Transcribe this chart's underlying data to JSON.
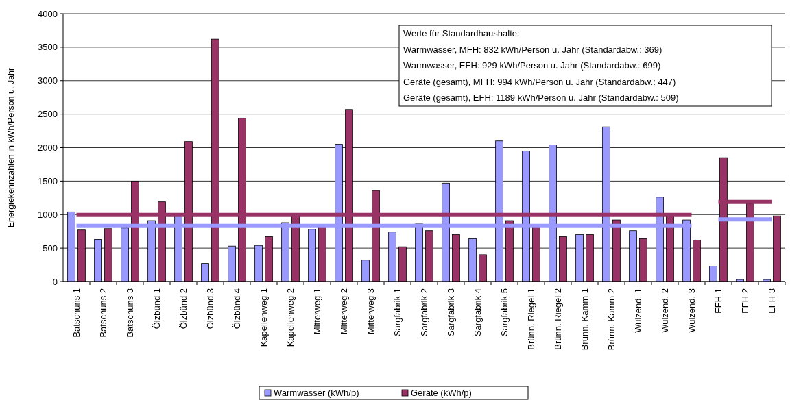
{
  "chart_data": {
    "type": "bar",
    "ylabel": "Energiekennzahlen in kWh/Person u. Jahr",
    "categories": [
      "Batschuns 1",
      "Batschuns 2",
      "Batschuns 3",
      "Ölzbünd 1",
      "Ölzbünd 2",
      "Ölzbünd 3",
      "Ölzbünd 4",
      "Kapellenweg 1",
      "Kapellenweg 2",
      "Mitterweg 1",
      "Mitterweg 2",
      "Mitterweg 3",
      "Sargfabrik 1",
      "Sargfabrik 2",
      "Sargfabrik 3",
      "Sargfabrik 4",
      "Sargfabrik 5",
      "Brünn. Riegel 1",
      "Brünn. Riegel 2",
      "Brünn. Kamm 1",
      "Brünn. Kamm 2",
      "Wulzend. 1",
      "Wulzend. 2",
      "Wulzend. 3",
      "EFH 1",
      "EFH 2",
      "EFH 3"
    ],
    "series": [
      {
        "name": "Warmwasser (kWh/p)",
        "color": "#9999ff",
        "values": [
          1040,
          630,
          800,
          910,
          990,
          270,
          530,
          540,
          880,
          780,
          2050,
          320,
          740,
          860,
          1470,
          640,
          2100,
          1950,
          2040,
          700,
          2310,
          760,
          1260,
          920,
          230,
          30,
          30
        ]
      },
      {
        "name": "Geräte (kWh/p)",
        "color": "#993366",
        "values": [
          770,
          790,
          1500,
          1190,
          2090,
          3620,
          2440,
          670,
          990,
          830,
          2570,
          1360,
          520,
          760,
          700,
          400,
          910,
          830,
          670,
          700,
          920,
          640,
          990,
          620,
          1850,
          1160,
          980
        ]
      },
      {
        "type": "line",
        "color": "#993366",
        "values": [
          994,
          994,
          994,
          994,
          994,
          994,
          994,
          994,
          994,
          994,
          994,
          994,
          994,
          994,
          994,
          994,
          994,
          994,
          994,
          994,
          994,
          994,
          994,
          994,
          null,
          null,
          null
        ]
      },
      {
        "type": "line",
        "color": "#9999ff",
        "values": [
          832,
          832,
          832,
          832,
          832,
          832,
          832,
          832,
          832,
          832,
          832,
          832,
          832,
          832,
          832,
          832,
          832,
          832,
          832,
          832,
          832,
          832,
          832,
          832,
          null,
          null,
          null
        ]
      },
      {
        "type": "line",
        "color": "#993366",
        "values": [
          null,
          null,
          null,
          null,
          null,
          null,
          null,
          null,
          null,
          null,
          null,
          null,
          null,
          null,
          null,
          null,
          null,
          null,
          null,
          null,
          null,
          null,
          null,
          null,
          1189,
          1189,
          1189
        ]
      },
      {
        "type": "line",
        "color": "#9999ff",
        "values": [
          null,
          null,
          null,
          null,
          null,
          null,
          null,
          null,
          null,
          null,
          null,
          null,
          null,
          null,
          null,
          null,
          null,
          null,
          null,
          null,
          null,
          null,
          null,
          null,
          929,
          929,
          929
        ]
      }
    ],
    "ylim": [
      0,
      4000
    ],
    "yticks": [
      0,
      500,
      1000,
      1500,
      2000,
      2500,
      3000,
      3500,
      4000
    ],
    "grid": "y",
    "legend": "bottom",
    "annotations": [
      "Werte für Standardhaushalte:",
      "Warmwasser, MFH: 832 kWh/Person u. Jahr (Standardabw.: 369)",
      "Warmwasser, EFH: 929 kWh/Person u. Jahr (Standardabw.: 699)",
      "Geräte (gesamt), MFH: 994 kWh/Person u. Jahr (Standardabw.: 447)",
      "Geräte (gesamt), EFH: 1189 kWh/Person u. Jahr (Standardabw.: 509)"
    ]
  }
}
